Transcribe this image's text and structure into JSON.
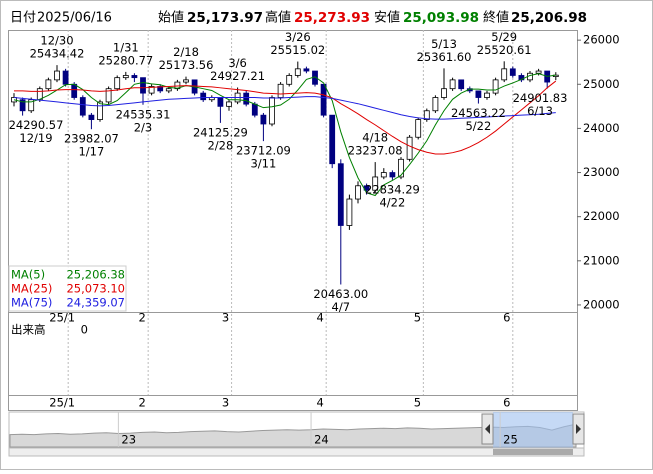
{
  "chart_data": {
    "type": "candlestick",
    "header": {
      "date_label": "日付",
      "date": "2025/06/16",
      "open_label": "始値",
      "open": {
        "value": 25173.97,
        "label": "25,173.97"
      },
      "high_label": "高値",
      "high": {
        "value": 25273.93,
        "label": "25,273.93"
      },
      "low_label": "安値",
      "low": {
        "value": 25093.98,
        "label": "25,093.98"
      },
      "close_label": "終値",
      "close": {
        "value": 25206.98,
        "label": "25,206.98"
      }
    },
    "up_color": "#ffffff",
    "down_color": "#000080",
    "open": [
      24600,
      24650,
      24400,
      24650,
      24900,
      25100,
      25300,
      25000,
      24700,
      24300,
      24200,
      24600,
      24900,
      25150,
      25200,
      25150,
      24800,
      24950,
      24850,
      24900,
      25050,
      25100,
      24800,
      24650,
      24700,
      24500,
      24600,
      24800,
      24550,
      24300,
      24100,
      24700,
      25000,
      25200,
      25350,
      25300,
      25000,
      24300,
      23200,
      21800,
      22400,
      22700,
      22600,
      22900,
      23000,
      22900,
      23300,
      23800,
      24200,
      24400,
      24700,
      24900,
      25100,
      24900,
      24850,
      24700,
      24800,
      25100,
      25350,
      25200,
      25100,
      25250,
      25300,
      25173.97
    ],
    "high": [
      24800,
      24700,
      24700,
      24950,
      25150,
      25434.42,
      25350,
      25050,
      24750,
      24350,
      24650,
      24950,
      25200,
      25280.77,
      25250,
      25150,
      25000,
      25000,
      24950,
      25100,
      25173.56,
      25100,
      24850,
      24750,
      24700,
      24650,
      24927.21,
      24850,
      24600,
      24350,
      24750,
      25050,
      25250,
      25515.02,
      25400,
      25300,
      25000,
      24300,
      23300,
      22500,
      22800,
      22750,
      23237.08,
      23100,
      23050,
      23350,
      23850,
      24250,
      24450,
      24750,
      25361.6,
      25150,
      25100,
      24950,
      24850,
      24850,
      25150,
      25520.61,
      25400,
      25250,
      25300,
      25350,
      25300,
      25273.93
    ],
    "low": [
      24500,
      24290.57,
      24350,
      24600,
      24850,
      25050,
      24950,
      24650,
      24250,
      23982.07,
      24150,
      24550,
      24850,
      25100,
      25050,
      24535.31,
      24750,
      24800,
      24800,
      24850,
      25000,
      24750,
      24600,
      24600,
      24125.29,
      24400,
      24550,
      24500,
      24250,
      23712.09,
      24050,
      24650,
      24950,
      25150,
      25250,
      24950,
      24250,
      23100,
      20463.0,
      21700,
      22300,
      22500,
      22550,
      22850,
      22834.29,
      22850,
      23250,
      23750,
      24150,
      24350,
      24650,
      24850,
      24850,
      24800,
      24563.22,
      24650,
      24750,
      25050,
      25150,
      25050,
      25050,
      25200,
      24901.83,
      25093.98
    ],
    "close": [
      24700,
      24400,
      24650,
      24900,
      25100,
      25300,
      25000,
      24700,
      24300,
      24200,
      24600,
      24900,
      25150,
      25200,
      25150,
      24800,
      24950,
      24850,
      24900,
      25050,
      25100,
      24800,
      24650,
      24700,
      24500,
      24600,
      24800,
      24550,
      24300,
      24100,
      24700,
      25000,
      25200,
      25350,
      25300,
      25000,
      24300,
      23200,
      21800,
      22400,
      22700,
      22600,
      22900,
      23000,
      22900,
      23300,
      23800,
      24200,
      24400,
      24700,
      24900,
      25100,
      24900,
      24850,
      24700,
      24800,
      25100,
      25350,
      25200,
      25100,
      25250,
      25300,
      25050,
      25206.98
    ],
    "series": [
      {
        "name": "MA(5)",
        "color": "#008000",
        "legend_value": {
          "value": 25206.38,
          "label": "25,206.38"
        },
        "values": [
          24650,
          24600,
          24600,
          24660,
          24750,
          24870,
          24990,
          25000,
          24880,
          24700,
          24560,
          24540,
          24630,
          24810,
          25000,
          25040,
          25010,
          24990,
          24930,
          24910,
          24970,
          24940,
          24900,
          24860,
          24750,
          24650,
          24650,
          24630,
          24550,
          24470,
          24490,
          24530,
          24660,
          24870,
          25110,
          25170,
          25030,
          24630,
          23920,
          23340,
          22880,
          22540,
          22480,
          22720,
          22820,
          22940,
          23180,
          23440,
          23720,
          24080,
          24400,
          24660,
          24800,
          24890,
          24890,
          24870,
          24870,
          24960,
          25030,
          25110,
          25200,
          25240,
          25180,
          25206.38
        ]
      },
      {
        "name": "MA(25)",
        "color": "#e00000",
        "legend_value": {
          "value": 25073.1,
          "label": "25,073.10"
        },
        "values": [
          24850,
          24850,
          24840,
          24840,
          24850,
          24870,
          24880,
          24880,
          24870,
          24850,
          24840,
          24850,
          24870,
          24900,
          24920,
          24920,
          24930,
          24940,
          24950,
          24960,
          24970,
          24960,
          24950,
          24940,
          24920,
          24900,
          24880,
          24860,
          24830,
          24800,
          24790,
          24780,
          24790,
          24800,
          24810,
          24800,
          24760,
          24690,
          24560,
          24450,
          24330,
          24200,
          24080,
          23950,
          23820,
          23700,
          23600,
          23520,
          23460,
          23420,
          23420,
          23450,
          23500,
          23580,
          23680,
          23800,
          23940,
          24100,
          24260,
          24420,
          24580,
          24740,
          24920,
          25073.1
        ]
      },
      {
        "name": "MA(75)",
        "color": "#2020e0",
        "legend_value": {
          "value": 24359.07,
          "label": "24,359.07"
        },
        "values": [
          24700,
          24680,
          24660,
          24640,
          24620,
          24600,
          24580,
          24560,
          24540,
          24520,
          24510,
          24520,
          24540,
          24560,
          24580,
          24600,
          24620,
          24640,
          24660,
          24670,
          24680,
          24690,
          24700,
          24700,
          24700,
          24700,
          24700,
          24700,
          24700,
          24690,
          24690,
          24690,
          24700,
          24710,
          24720,
          24720,
          24700,
          24680,
          24640,
          24600,
          24560,
          24510,
          24460,
          24410,
          24360,
          24310,
          24270,
          24240,
          24220,
          24210,
          24210,
          24220,
          24230,
          24240,
          24250,
          24260,
          24270,
          24280,
          24290,
          24300,
          24310,
          24320,
          24340,
          24359.07
        ]
      }
    ],
    "ylim": [
      19840,
      26230
    ],
    "yticks": [
      20000,
      21000,
      22000,
      23000,
      24000,
      25000,
      26000
    ],
    "xticks": [
      {
        "value": 6.3,
        "label": "25/1"
      },
      {
        "value": 15.6,
        "label": "2"
      },
      {
        "value": 25.3,
        "label": "3"
      },
      {
        "value": 36.3,
        "label": "4"
      },
      {
        "value": 47.6,
        "label": "5"
      },
      {
        "value": 58,
        "label": "6"
      }
    ],
    "annotations": [
      {
        "date": "12/19",
        "value": 24290.57
      },
      {
        "date": "12/30",
        "value": 25434.42
      },
      {
        "date": "1/17",
        "value": 23982.07
      },
      {
        "date": "1/31",
        "value": 25280.77
      },
      {
        "date": "2/3",
        "value": 24535.31
      },
      {
        "date": "2/18",
        "value": 25173.56
      },
      {
        "date": "2/28",
        "value": 24125.29
      },
      {
        "date": "3/6",
        "value": 24927.21
      },
      {
        "date": "3/11",
        "value": 23712.09
      },
      {
        "date": "3/26",
        "value": 25515.02
      },
      {
        "date": "4/7",
        "value": {
          "value": 20463,
          "label": "20463.00"
        }
      },
      {
        "date": "4/18",
        "value": 23237.08
      },
      {
        "date": "4/22",
        "value": 22834.29
      },
      {
        "date": "5/13",
        "value": {
          "value": 25361.6,
          "label": "25361.60"
        }
      },
      {
        "date": "5/22",
        "value": 24563.22
      },
      {
        "date": "5/29",
        "value": 25520.61
      },
      {
        "date": "6/13",
        "value": 24901.83
      }
    ],
    "volume": {
      "label": "出来高",
      "yticks": [
        0
      ]
    },
    "navigator": {
      "color": "#999999",
      "ylim": [
        19000,
        27000
      ],
      "xticks": [
        {
          "value": 9,
          "label": "23"
        },
        {
          "value": 25,
          "label": "24"
        },
        {
          "value": 40.7,
          "label": "25"
        }
      ],
      "values": [
        22300,
        22400,
        22300,
        22500,
        22600,
        22400,
        22500,
        22700,
        22800,
        22600,
        22700,
        22900,
        23000,
        22800,
        22900,
        23100,
        23200,
        23300,
        23100,
        23000,
        23200,
        23400,
        23500,
        23600,
        23500,
        23600,
        23800,
        23700,
        23600,
        23800,
        23900,
        24000,
        23900,
        24100,
        24000,
        23800,
        23900,
        24000,
        24100,
        24200,
        24300,
        24200,
        24400,
        24500,
        24200,
        23500,
        24400,
        25100
      ]
    }
  }
}
